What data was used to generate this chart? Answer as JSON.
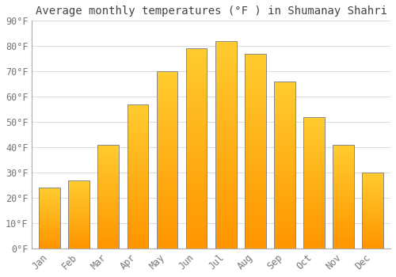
{
  "title": "Average monthly temperatures (°F ) in Shumanay Shahri",
  "months": [
    "Jan",
    "Feb",
    "Mar",
    "Apr",
    "May",
    "Jun",
    "Jul",
    "Aug",
    "Sep",
    "Oct",
    "Nov",
    "Dec"
  ],
  "values": [
    24,
    27,
    41,
    57,
    70,
    79,
    82,
    77,
    66,
    52,
    41,
    30
  ],
  "bar_color_top": "#FFB300",
  "bar_color_bottom": "#FF9500",
  "bar_edge_color": "#888888",
  "background_color": "#FFFFFF",
  "grid_color": "#DDDDDD",
  "title_fontsize": 10,
  "tick_fontsize": 8.5,
  "ylim": [
    0,
    90
  ],
  "yticks": [
    0,
    10,
    20,
    30,
    40,
    50,
    60,
    70,
    80,
    90
  ],
  "ytick_labels": [
    "0°F",
    "10°F",
    "20°F",
    "30°F",
    "40°F",
    "50°F",
    "60°F",
    "70°F",
    "80°F",
    "90°F"
  ]
}
